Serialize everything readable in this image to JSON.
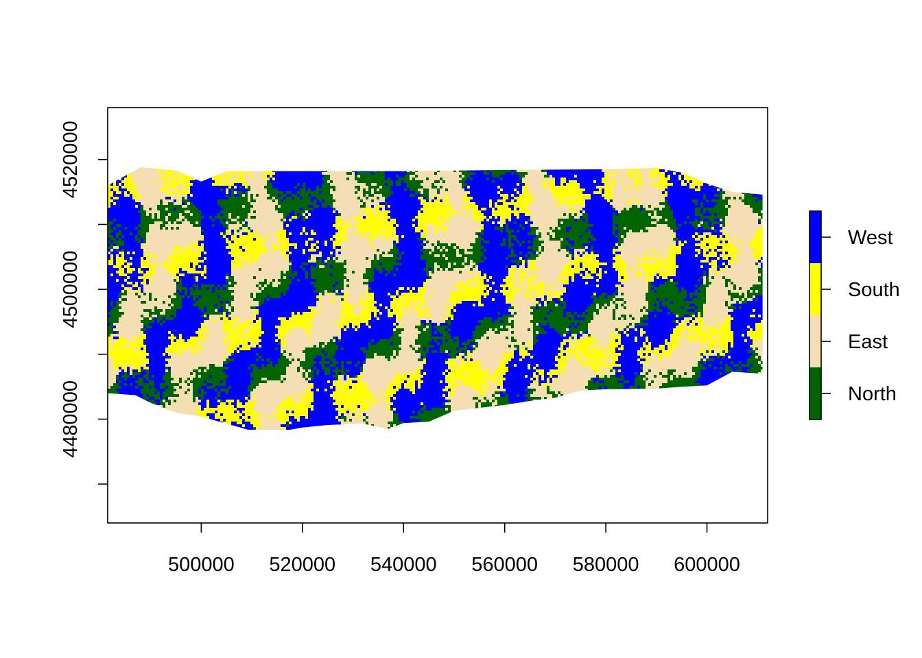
{
  "chart_data": {
    "type": "heatmap",
    "title": "",
    "xlabel": "",
    "ylabel": "",
    "xlim": [
      481500,
      612000
    ],
    "ylim": [
      4464000,
      4528000
    ],
    "x_ticks": [
      {
        "value": 500000,
        "label": "500000"
      },
      {
        "value": 520000,
        "label": "520000"
      },
      {
        "value": 540000,
        "label": "540000"
      },
      {
        "value": 560000,
        "label": "560000"
      },
      {
        "value": 580000,
        "label": "580000"
      },
      {
        "value": 600000,
        "label": "600000"
      }
    ],
    "y_ticks": [
      {
        "value": 4470000,
        "label": ""
      },
      {
        "value": 4480000,
        "label": "4480000"
      },
      {
        "value": 4490000,
        "label": ""
      },
      {
        "value": 4500000,
        "label": "4500000"
      },
      {
        "value": 4510000,
        "label": ""
      },
      {
        "value": 4520000,
        "label": "4520000"
      },
      {
        "value": 4530000,
        "label": ""
      }
    ],
    "legend": {
      "position": "right",
      "classes": [
        {
          "label": "North",
          "color": "#006400"
        },
        {
          "label": "East",
          "color": "#F5DEB3"
        },
        {
          "label": "South",
          "color": "#FFFF00"
        },
        {
          "label": "West",
          "color": "#0000FF"
        }
      ]
    },
    "raster_extent": {
      "top_outline": [
        [
          481500,
          4516000
        ],
        [
          488000,
          4518800
        ],
        [
          495000,
          4518300
        ],
        [
          500000,
          4516600
        ],
        [
          505000,
          4518200
        ],
        [
          520000,
          4518200
        ],
        [
          540000,
          4518200
        ],
        [
          560000,
          4518400
        ],
        [
          580000,
          4518500
        ],
        [
          590000,
          4518700
        ],
        [
          595000,
          4518000
        ],
        [
          600000,
          4516300
        ],
        [
          605000,
          4515000
        ],
        [
          611000,
          4514600
        ]
      ],
      "bottom_outline": [
        [
          611000,
          4487000
        ],
        [
          605000,
          4487300
        ],
        [
          600000,
          4485200
        ],
        [
          595000,
          4485000
        ],
        [
          590000,
          4484700
        ],
        [
          580000,
          4484600
        ],
        [
          575000,
          4484400
        ],
        [
          570000,
          4483300
        ],
        [
          565000,
          4482800
        ],
        [
          560000,
          4482200
        ],
        [
          550000,
          4481300
        ],
        [
          545000,
          4479600
        ],
        [
          540000,
          4479400
        ],
        [
          537000,
          4478500
        ],
        [
          532000,
          4479300
        ],
        [
          525000,
          4479100
        ],
        [
          520000,
          4478700
        ],
        [
          515000,
          4478000
        ],
        [
          510000,
          4478200
        ],
        [
          505000,
          4479300
        ],
        [
          500000,
          4480400
        ],
        [
          495000,
          4481000
        ],
        [
          490000,
          4482500
        ],
        [
          487000,
          4483700
        ],
        [
          481500,
          4484000
        ]
      ]
    }
  }
}
